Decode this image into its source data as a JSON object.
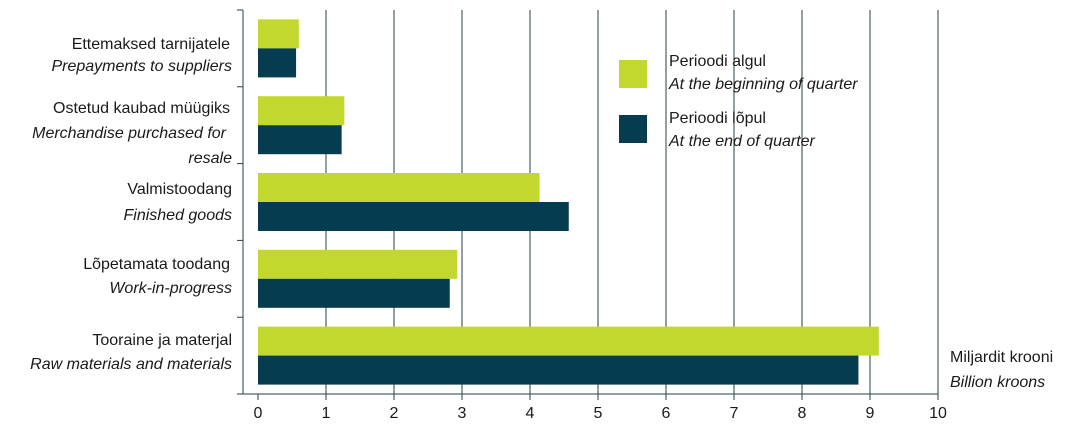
{
  "chart_data": {
    "type": "bar",
    "orientation": "horizontal",
    "categories": [
      {
        "et": "Ettemaksed tarnijatele",
        "en": "Prepayments to suppliers"
      },
      {
        "et": "Ostetud kaubad müügiks",
        "en_line1": "Merchandise purchased for",
        "en_line2": "resale"
      },
      {
        "et": "Valmistoodang",
        "en": "Finished goods"
      },
      {
        "et": "Lõpetamata toodang",
        "en": "Work-in-progress"
      },
      {
        "et": "Tooraine ja materjal",
        "en": "Raw materials and materials"
      }
    ],
    "series": [
      {
        "name_et": "Perioodi algul",
        "name_en": "At the beginning of quarter",
        "color": "#c3d82e",
        "values": [
          0.6,
          1.27,
          4.14,
          2.93,
          9.13
        ]
      },
      {
        "name_et": "Perioodi lõpul",
        "name_en": "At the end of quarter",
        "color": "#063c4f",
        "values": [
          0.56,
          1.23,
          4.57,
          2.82,
          8.83
        ]
      }
    ],
    "xlim": [
      0,
      10
    ],
    "xticks": [
      "0",
      "1",
      "2",
      "3",
      "4",
      "5",
      "6",
      "7",
      "8",
      "9",
      "10"
    ],
    "unit_et": "Miljardit krooni",
    "unit_en": "Billion kroons",
    "grid": "vertical",
    "legend_position": "top-right"
  }
}
